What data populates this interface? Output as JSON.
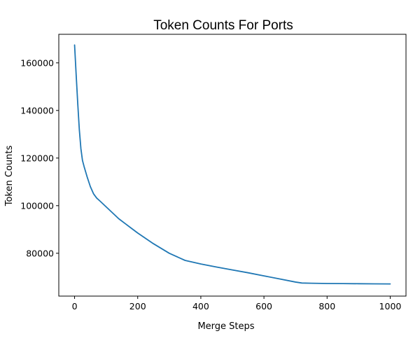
{
  "chart_data": {
    "type": "line",
    "title": "Token Counts For Ports",
    "xlabel": "Merge Steps",
    "ylabel": "Token Counts",
    "xlim": [
      -50,
      1050
    ],
    "ylim": [
      62000,
      172000
    ],
    "xticks": [
      0,
      200,
      400,
      600,
      800,
      1000
    ],
    "yticks": [
      80000,
      100000,
      120000,
      140000,
      160000
    ],
    "grid": false,
    "line_color": "#1f77b4",
    "series": [
      {
        "x": [
          0,
          5,
          10,
          15,
          20,
          25,
          30,
          40,
          50,
          60,
          70,
          80,
          100,
          120,
          140,
          160,
          180,
          200,
          250,
          300,
          350,
          400,
          450,
          500,
          550,
          600,
          650,
          700,
          720,
          750,
          800,
          850,
          900,
          950,
          1000
        ],
        "values": [
          167500,
          155000,
          143000,
          132000,
          124000,
          119000,
          116500,
          112000,
          108000,
          105000,
          103200,
          102000,
          99500,
          97000,
          94500,
          92500,
          90500,
          88500,
          84000,
          80000,
          77000,
          75500,
          74200,
          73000,
          71800,
          70500,
          69200,
          67900,
          67500,
          67400,
          67300,
          67250,
          67200,
          67150,
          67100
        ]
      }
    ]
  }
}
